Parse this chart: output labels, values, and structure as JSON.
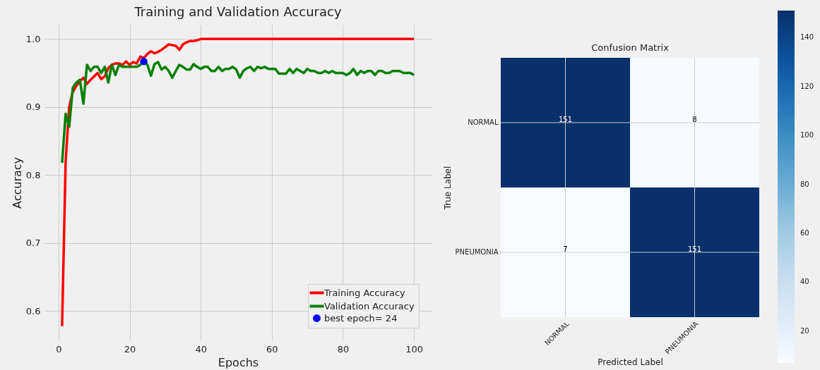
{
  "chart_data": [
    {
      "type": "line",
      "title": "Training and Validation Accuracy",
      "xlabel": "Epochs",
      "ylabel": "Accuracy",
      "x": [
        1,
        2,
        3,
        4,
        5,
        6,
        7,
        8,
        9,
        10,
        11,
        12,
        13,
        14,
        15,
        16,
        17,
        18,
        19,
        20,
        21,
        22,
        23,
        24,
        25,
        26,
        27,
        28,
        29,
        30,
        31,
        32,
        33,
        34,
        35,
        36,
        37,
        38,
        39,
        40,
        41,
        42,
        43,
        44,
        45,
        46,
        47,
        48,
        49,
        50,
        51,
        52,
        53,
        54,
        55,
        56,
        57,
        58,
        59,
        60,
        61,
        62,
        63,
        64,
        65,
        66,
        67,
        68,
        69,
        70,
        71,
        72,
        73,
        74,
        75,
        76,
        77,
        78,
        79,
        80,
        81,
        82,
        83,
        84,
        85,
        86,
        87,
        88,
        89,
        90,
        91,
        92,
        93,
        94,
        95,
        96,
        97,
        98,
        99,
        100
      ],
      "series": [
        {
          "name": "Training Accuracy",
          "color": "#ff0000",
          "type": "line",
          "values": [
            0.578,
            0.82,
            0.9,
            0.922,
            0.931,
            0.938,
            0.943,
            0.934,
            0.94,
            0.945,
            0.95,
            0.941,
            0.945,
            0.957,
            0.962,
            0.964,
            0.964,
            0.962,
            0.967,
            0.962,
            0.966,
            0.964,
            0.974,
            0.972,
            0.978,
            0.982,
            0.979,
            0.981,
            0.984,
            0.988,
            0.992,
            0.991,
            0.99,
            0.984,
            0.992,
            0.995,
            0.997,
            0.997,
            0.998,
            1.0,
            1.0,
            1.0,
            1.0,
            1.0,
            1.0,
            1.0,
            1.0,
            1.0,
            1.0,
            1.0,
            1.0,
            1.0,
            1.0,
            1.0,
            1.0,
            1.0,
            1.0,
            1.0,
            1.0,
            1.0,
            1.0,
            1.0,
            1.0,
            1.0,
            1.0,
            1.0,
            1.0,
            1.0,
            1.0,
            1.0,
            1.0,
            1.0,
            1.0,
            1.0,
            1.0,
            1.0,
            1.0,
            1.0,
            1.0,
            1.0,
            1.0,
            1.0,
            1.0,
            1.0,
            1.0,
            1.0,
            1.0,
            1.0,
            1.0,
            1.0,
            1.0,
            1.0,
            1.0,
            1.0,
            1.0,
            1.0,
            1.0,
            1.0,
            1.0,
            1.0
          ]
        },
        {
          "name": "Validation Accuracy",
          "color": "#008000",
          "type": "line",
          "values": [
            0.818,
            0.89,
            0.871,
            0.928,
            0.936,
            0.94,
            0.905,
            0.962,
            0.953,
            0.959,
            0.959,
            0.95,
            0.959,
            0.936,
            0.962,
            0.947,
            0.962,
            0.959,
            0.959,
            0.959,
            0.959,
            0.959,
            0.962,
            0.967,
            0.962,
            0.946,
            0.963,
            0.966,
            0.955,
            0.959,
            0.953,
            0.943,
            0.953,
            0.962,
            0.959,
            0.955,
            0.955,
            0.963,
            0.959,
            0.956,
            0.959,
            0.959,
            0.953,
            0.953,
            0.959,
            0.953,
            0.956,
            0.956,
            0.959,
            0.955,
            0.943,
            0.953,
            0.957,
            0.959,
            0.953,
            0.959,
            0.957,
            0.959,
            0.956,
            0.956,
            0.956,
            0.949,
            0.949,
            0.949,
            0.956,
            0.95,
            0.956,
            0.953,
            0.95,
            0.956,
            0.953,
            0.953,
            0.95,
            0.95,
            0.953,
            0.95,
            0.953,
            0.95,
            0.95,
            0.95,
            0.947,
            0.95,
            0.956,
            0.947,
            0.953,
            0.95,
            0.953,
            0.953,
            0.947,
            0.953,
            0.953,
            0.95,
            0.95,
            0.953,
            0.953,
            0.953,
            0.95,
            0.95,
            0.95,
            0.947
          ]
        },
        {
          "name": "best epoch= 24",
          "color": "#0000ff",
          "type": "scatter",
          "marker": "circle",
          "x": [
            24
          ],
          "values": [
            0.967
          ]
        }
      ],
      "xlim": [
        -3.95,
        104.95
      ],
      "ylim": [
        0.557,
        1.021
      ],
      "xticks": [
        0,
        20,
        40,
        60,
        80,
        100
      ],
      "yticks": [
        0.6,
        0.7,
        0.8,
        0.9,
        {
          "value": 1,
          "label": "1.0"
        }
      ],
      "grid": true,
      "legend": "bottom right"
    },
    {
      "type": "heatmap",
      "title": "Confusion Matrix",
      "xlabel": "Predicted Label",
      "ylabel": "True Label",
      "categories": [
        "NORMAL",
        "PNEUMONIA"
      ],
      "y_categories": [
        "NORMAL",
        "PNEUMONIA"
      ],
      "cells": [
        [
          151,
          8
        ],
        [
          7,
          151
        ]
      ],
      "clim": [
        7,
        151
      ],
      "cticks": [
        20,
        40,
        60,
        80,
        100,
        120,
        140
      ],
      "data_labels": true,
      "grid": true
    }
  ]
}
